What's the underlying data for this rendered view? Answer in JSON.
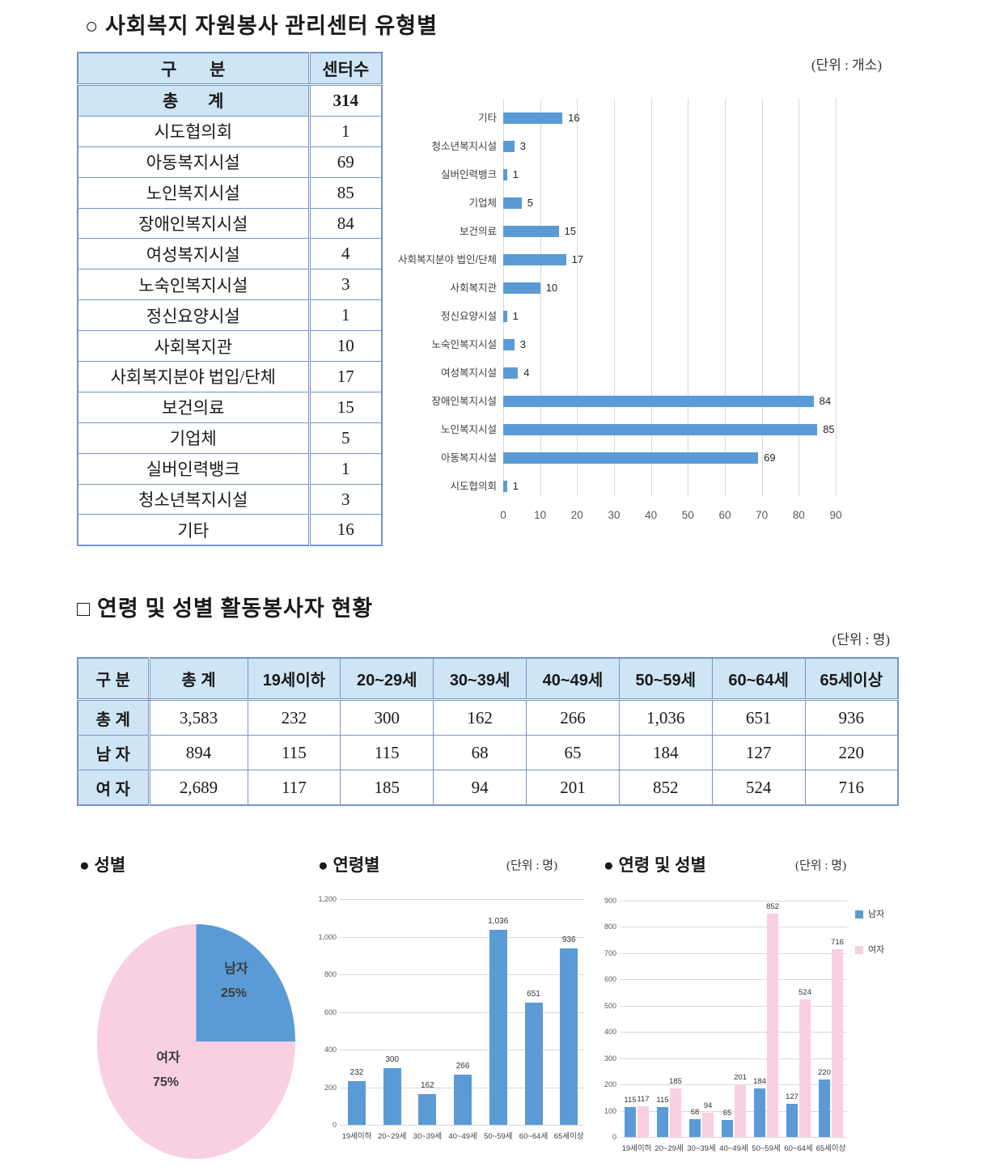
{
  "section1": {
    "title": "○ 사회복지 자원봉사 관리센터 유형별",
    "unit": "(단위 : 개소)"
  },
  "table1": {
    "headers": [
      "구       분",
      "센터수"
    ],
    "rows": [
      [
        "총       계",
        "314"
      ],
      [
        "시도협의회",
        "1"
      ],
      [
        "아동복지시설",
        "69"
      ],
      [
        "노인복지시설",
        "85"
      ],
      [
        "장애인복지시설",
        "84"
      ],
      [
        "여성복지시설",
        "4"
      ],
      [
        "노숙인복지시설",
        "3"
      ],
      [
        "정신요양시설",
        "1"
      ],
      [
        "사회복지관",
        "10"
      ],
      [
        "사회복지분야 법입/단체",
        "17"
      ],
      [
        "보건의료",
        "15"
      ],
      [
        "기업체",
        "5"
      ],
      [
        "실버인력뱅크",
        "1"
      ],
      [
        "청소년복지시설",
        "3"
      ],
      [
        "기타",
        "16"
      ]
    ]
  },
  "section2": {
    "title": "□ 연령 및 성별 활동봉사자 현황",
    "unit": "(단위 : 명)"
  },
  "table2": {
    "headers": [
      "구 분",
      "총 계",
      "19세이하",
      "20~29세",
      "30~39세",
      "40~49세",
      "50~59세",
      "60~64세",
      "65세이상"
    ],
    "rows": [
      [
        "총 계",
        "3,583",
        "232",
        "300",
        "162",
        "266",
        "1,036",
        "651",
        "936"
      ],
      [
        "남 자",
        "894",
        "115",
        "115",
        "68",
        "65",
        "184",
        "127",
        "220"
      ],
      [
        "여 자",
        "2,689",
        "117",
        "185",
        "94",
        "201",
        "852",
        "524",
        "716"
      ]
    ]
  },
  "bottom": {
    "gender_title": "● 성별",
    "age_title": "● 연령별",
    "age_unit": "(단위 : 명)",
    "age_gender_title": "● 연령 및 성별",
    "age_gender_unit": "(단위 : 명)"
  },
  "colors": {
    "bar_blue": "#5b9bd5",
    "bar_pink": "#f9cfe2",
    "table_header_bg": "#cee5f6",
    "table_border": "#7694c4",
    "gridline": "#d9d9d9"
  },
  "chart_data": [
    {
      "id": "center-type-chart",
      "type": "bar",
      "orientation": "horizontal",
      "title": "사회복지 자원봉사 관리센터 유형별",
      "unit": "(단위 : 개소)",
      "categories": [
        "기타",
        "청소년복지시설",
        "실버인력뱅크",
        "기업체",
        "보건의료",
        "사회복지분야 법인/단체",
        "사회복지관",
        "정신요양시설",
        "노숙인복지시설",
        "여성복지시설",
        "장애인복지시설",
        "노인복지시설",
        "아동복지시설",
        "시도협의회"
      ],
      "values": [
        16,
        3,
        1,
        5,
        15,
        17,
        10,
        1,
        3,
        4,
        84,
        85,
        69,
        1
      ],
      "xlim": [
        0,
        90
      ],
      "xticks": [
        0,
        10,
        20,
        30,
        40,
        50,
        60,
        70,
        80,
        90
      ],
      "bar_color": "#5b9bd5",
      "grid": true,
      "legend": false
    },
    {
      "id": "gender-pie-chart",
      "type": "pie",
      "title": "성별",
      "slices": [
        {
          "label": "남자",
          "value": 25,
          "text": "25%",
          "color": "#5b9bd5"
        },
        {
          "label": "여자",
          "value": 75,
          "text": "75%",
          "color": "#f9cfe2"
        }
      ]
    },
    {
      "id": "age-bar-chart",
      "type": "bar",
      "title": "연령별",
      "unit": "(단위 : 명)",
      "categories": [
        "19세이하",
        "20~29세",
        "30~39세",
        "40~49세",
        "50~59세",
        "60~64세",
        "65세이상"
      ],
      "values": [
        232,
        300,
        162,
        266,
        1036,
        651,
        936
      ],
      "value_labels": [
        "232",
        "300",
        "162",
        "266",
        "1,036",
        "651",
        "936"
      ],
      "ylim": [
        0,
        1200
      ],
      "ytick_step": 200,
      "ytick_labels": [
        "0",
        "200",
        "400",
        "600",
        "800",
        "1,000",
        "1,200"
      ],
      "bar_color": "#5b9bd5",
      "grid": true,
      "legend": false
    },
    {
      "id": "age-gender-bar-chart",
      "type": "bar",
      "grouped": true,
      "title": "연령 및 성별",
      "unit": "(단위 : 명)",
      "categories": [
        "19세이하",
        "20~29세",
        "30~39세",
        "40~49세",
        "50~59세",
        "60~64세",
        "65세이상"
      ],
      "series": [
        {
          "name": "남자",
          "color": "#5b9bd5",
          "values": [
            115,
            115,
            68,
            65,
            184,
            127,
            220
          ]
        },
        {
          "name": "여자",
          "color": "#f9cfe2",
          "values": [
            117,
            185,
            94,
            201,
            852,
            524,
            716
          ]
        }
      ],
      "ylim": [
        0,
        900
      ],
      "ytick_step": 100,
      "ytick_labels": [
        "0",
        "100",
        "200",
        "300",
        "400",
        "500",
        "600",
        "700",
        "800",
        "900"
      ],
      "grid": true,
      "legend_position": "right"
    }
  ]
}
